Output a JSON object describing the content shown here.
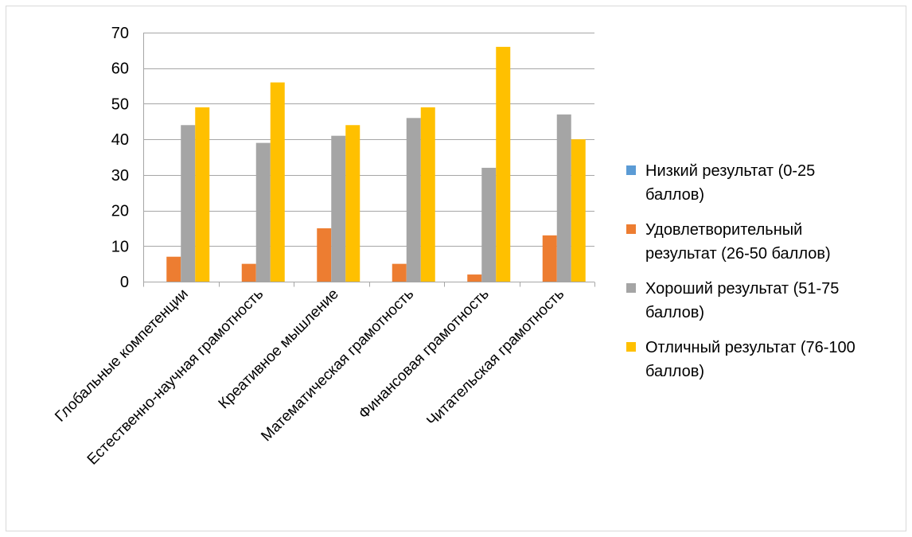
{
  "chart_data": {
    "type": "bar",
    "title": "",
    "xlabel": "",
    "ylabel": "",
    "ylim": [
      0,
      70
    ],
    "yticks": [
      0,
      10,
      20,
      30,
      40,
      50,
      60,
      70
    ],
    "grid": true,
    "legend_position": "right",
    "categories": [
      "Глобальные компетенции",
      "Естественно-научная грамотность",
      "Креативное мышление",
      "Математическая грамотность",
      "Финансовая грамотность",
      "Читательская грамотность"
    ],
    "series": [
      {
        "name": "Низкий результат (0-25 баллов)",
        "legend_lines": [
          "Низкий результат (0-25",
          "баллов)"
        ],
        "color": "#5B9BD5",
        "values": [
          0,
          0,
          0,
          0,
          0,
          0
        ]
      },
      {
        "name": "Удовлетворительный результат (26-50 баллов)",
        "legend_lines": [
          "Удовлетворительный",
          "результат (26-50 баллов)"
        ],
        "color": "#ED7D31",
        "values": [
          7,
          5,
          15,
          5,
          2,
          13
        ]
      },
      {
        "name": "Хороший результат (51-75 баллов)",
        "legend_lines": [
          "Хороший результат (51-75",
          "баллов)"
        ],
        "color": "#A5A5A5",
        "values": [
          44,
          39,
          41,
          46,
          32,
          47
        ]
      },
      {
        "name": "Отличный результат (76-100 баллов)",
        "legend_lines": [
          "Отличный результат (76-100",
          "баллов)"
        ],
        "color": "#FFC000",
        "values": [
          49,
          56,
          44,
          49,
          66,
          40
        ]
      }
    ]
  }
}
